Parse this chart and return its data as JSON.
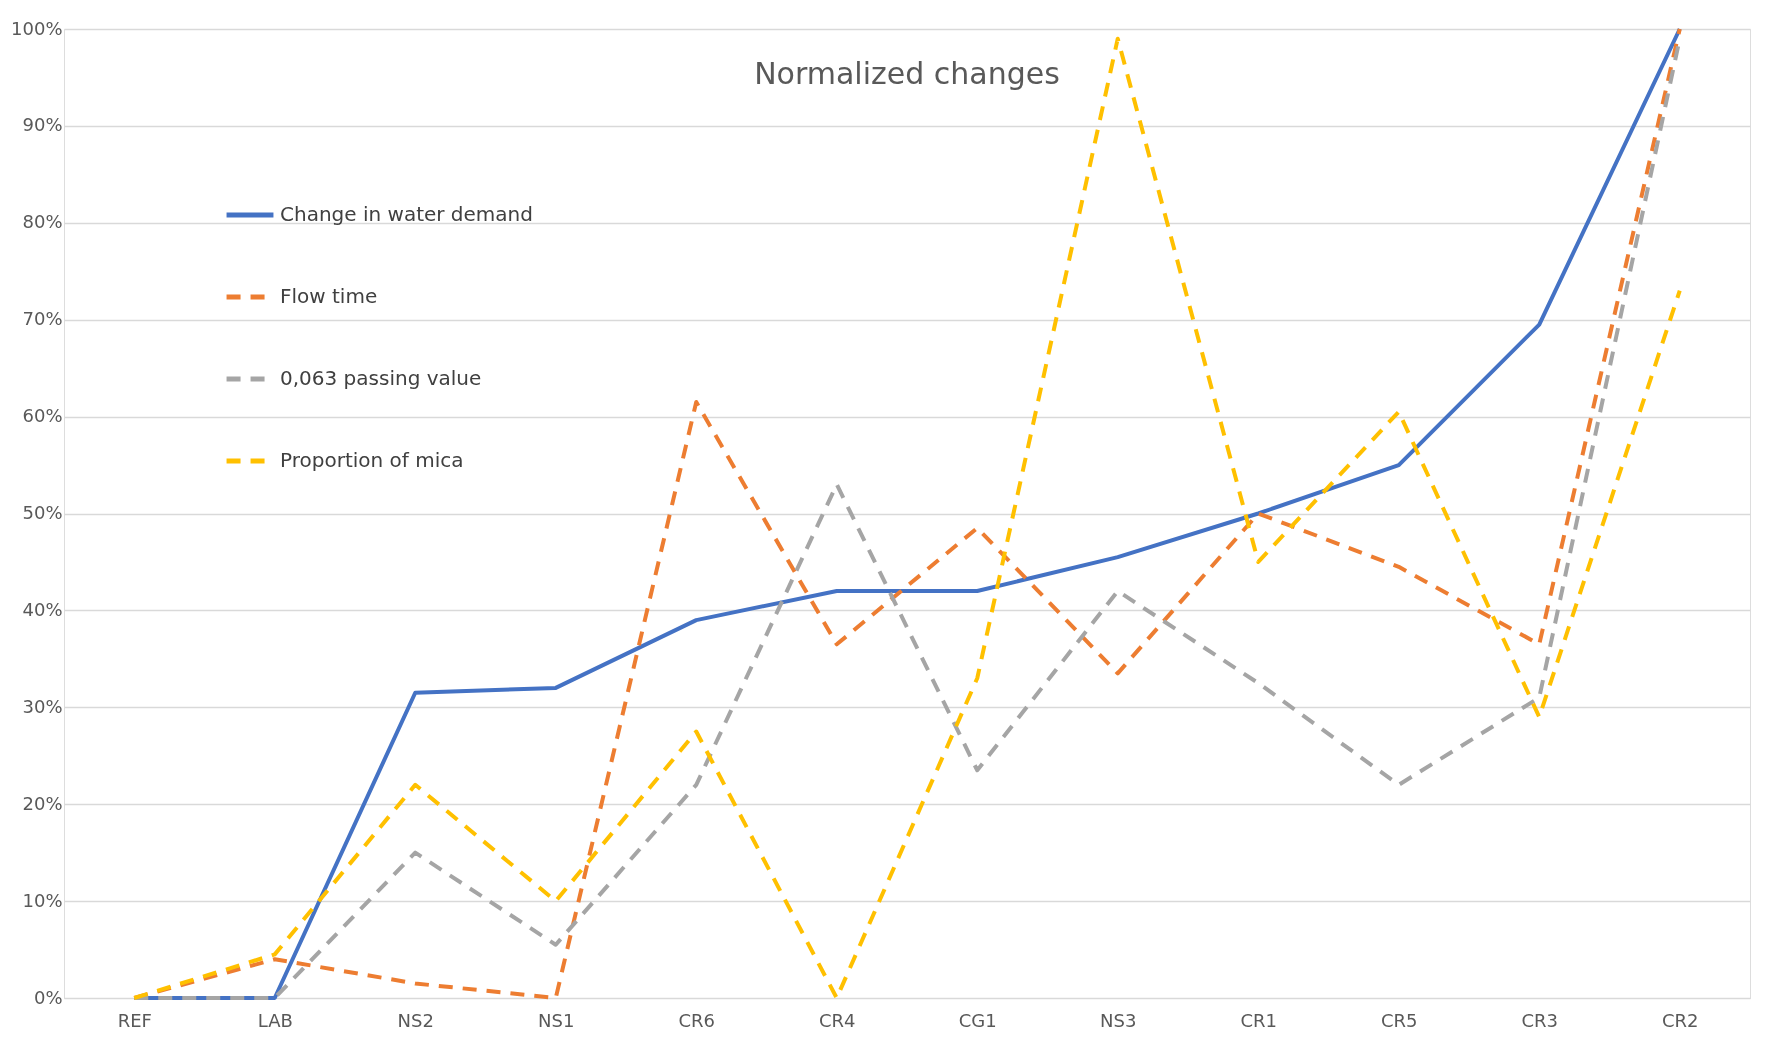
{
  "chart_data": {
    "type": "line",
    "title": "Normalized changes",
    "categories": [
      "REF",
      "LAB",
      "NS2",
      "NS1",
      "CR6",
      "CR4",
      "CG1",
      "NS3",
      "CR1",
      "CR5",
      "CR3",
      "CR2"
    ],
    "series": [
      {
        "name": "Change in water demand",
        "color": "#4472c4",
        "line_style": "solid",
        "values": [
          0,
          0,
          31.5,
          32,
          39,
          42,
          42,
          45.5,
          50,
          55,
          69.5,
          100
        ]
      },
      {
        "name": "Flow time",
        "color": "#ed7d31",
        "line_style": "dashed",
        "values": [
          0,
          4,
          1.5,
          0,
          61.5,
          36.5,
          48.5,
          33.5,
          50,
          44.5,
          36.5,
          100
        ]
      },
      {
        "name": "0,063 passing value",
        "color": "#a5a5a5",
        "line_style": "dashed",
        "values": [
          0,
          0,
          15,
          5.5,
          22,
          53,
          23.5,
          42,
          32.5,
          22,
          31,
          99
        ]
      },
      {
        "name": "Proportion of mica",
        "color": "#ffc000",
        "line_style": "dashed",
        "values": [
          0,
          4.5,
          22,
          10,
          27.5,
          0,
          33,
          99,
          45,
          60.5,
          29,
          73
        ]
      }
    ],
    "ylim": [
      0,
      100
    ],
    "yticks": [
      {
        "value": 0,
        "label": "0%"
      },
      {
        "value": 10,
        "label": "10%"
      },
      {
        "value": 20,
        "label": "20%"
      },
      {
        "value": 30,
        "label": "30%"
      },
      {
        "value": 40,
        "label": "40%"
      },
      {
        "value": 50,
        "label": "50%"
      },
      {
        "value": 60,
        "label": "60%"
      },
      {
        "value": 70,
        "label": "70%"
      },
      {
        "value": 80,
        "label": "80%"
      },
      {
        "value": 90,
        "label": "90%"
      },
      {
        "value": 100,
        "label": "100%"
      }
    ],
    "grid": "y",
    "legend": "top left",
    "marker": "none"
  }
}
